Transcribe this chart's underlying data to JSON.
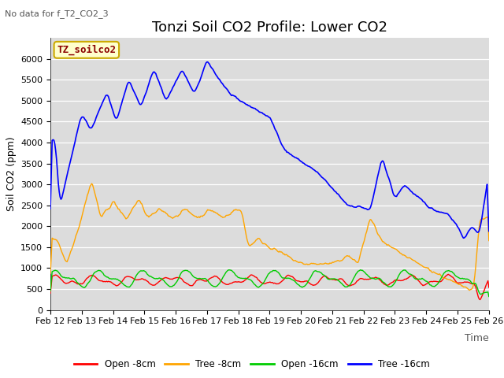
{
  "title": "Tonzi Soil CO2 Profile: Lower CO2",
  "subtitle": "No data for f_T2_CO2_3",
  "ylabel": "Soil CO2 (ppm)",
  "xlabel": "Time",
  "legend_label": "TZ_soilco2",
  "ylim": [
    0,
    6500
  ],
  "yticks": [
    0,
    500,
    1000,
    1500,
    2000,
    2500,
    3000,
    3500,
    4000,
    4500,
    5000,
    5500,
    6000
  ],
  "bg_color": "#dcdcdc",
  "line_colors": {
    "open_8cm": "#ff0000",
    "tree_8cm": "#ffa500",
    "open_16cm": "#00cc00",
    "tree_16cm": "#0000ff"
  },
  "legend_entries": [
    "Open -8cm",
    "Tree -8cm",
    "Open -16cm",
    "Tree -16cm"
  ],
  "x_tick_labels": [
    "Feb 12",
    "Feb 13",
    "Feb 14",
    "Feb 15",
    "Feb 16",
    "Feb 17",
    "Feb 18",
    "Feb 19",
    "Feb 20",
    "Feb 21",
    "Feb 22",
    "Feb 23",
    "Feb 24",
    "Feb 25",
    "Feb 26"
  ],
  "title_fontsize": 13,
  "axis_fontsize": 9,
  "tick_fontsize": 8,
  "legend_label_color": "#8b0000",
  "legend_box_facecolor": "#ffffcc",
  "legend_box_edgecolor": "#ccaa00"
}
